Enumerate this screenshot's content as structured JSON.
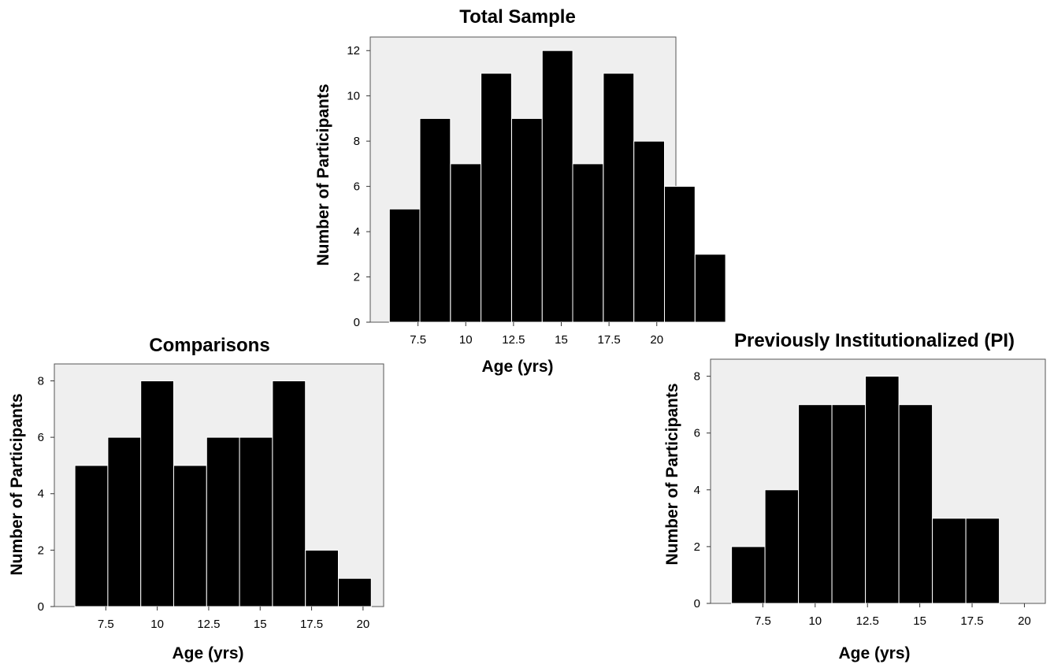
{
  "chart_data": [
    {
      "type": "bar",
      "title": "Total Sample",
      "xlabel": "Age (yrs)",
      "ylabel": "Number of Participants",
      "bin_start": 6.0,
      "bin_width": 1.6,
      "values": [
        5,
        9,
        7,
        11,
        9,
        12,
        7,
        11,
        8,
        6,
        3
      ],
      "xlim": [
        5.0,
        21.0
      ],
      "ylim": [
        0,
        12.6
      ],
      "xticks": [
        7.5,
        10,
        12.5,
        15,
        17.5,
        20
      ],
      "xtick_labels": [
        "7.5",
        "10",
        "12.5",
        "15",
        "17.5",
        "20"
      ],
      "yticks": [
        0,
        2,
        4,
        6,
        8,
        10,
        12
      ],
      "ytick_labels": [
        "0",
        "2",
        "4",
        "6",
        "8",
        "10",
        "12"
      ],
      "bar_color": "#000000",
      "bar_edge_color": "#ffffff",
      "plot_background": "#efefef",
      "grid": false
    },
    {
      "type": "bar",
      "title": "Comparisons",
      "xlabel": "Age (yrs)",
      "ylabel": "Number of Participants",
      "bin_start": 6.0,
      "bin_width": 1.6,
      "values": [
        5,
        6,
        8,
        5,
        6,
        6,
        8,
        2,
        1
      ],
      "xlim": [
        5.0,
        21.0
      ],
      "ylim": [
        0,
        8.6
      ],
      "xticks": [
        7.5,
        10,
        12.5,
        15,
        17.5,
        20
      ],
      "xtick_labels": [
        "7.5",
        "10",
        "12.5",
        "15",
        "17.5",
        "20"
      ],
      "yticks": [
        0,
        2,
        4,
        6,
        8
      ],
      "ytick_labels": [
        "0",
        "2",
        "4",
        "6",
        "8"
      ],
      "bar_color": "#000000",
      "bar_edge_color": "#ffffff",
      "plot_background": "#efefef",
      "grid": false
    },
    {
      "type": "bar",
      "title": "Previously Institutionalized (PI)",
      "xlabel": "Age (yrs)",
      "ylabel": "Number of Participants",
      "bin_start": 6.0,
      "bin_width": 1.6,
      "values": [
        2,
        4,
        7,
        7,
        8,
        7,
        3,
        3
      ],
      "xlim": [
        5.0,
        21.0
      ],
      "ylim": [
        0,
        8.6
      ],
      "xticks": [
        7.5,
        10,
        12.5,
        15,
        17.5,
        20
      ],
      "xtick_labels": [
        "7.5",
        "10",
        "12.5",
        "15",
        "17.5",
        "20"
      ],
      "yticks": [
        0,
        2,
        4,
        6,
        8
      ],
      "ytick_labels": [
        "0",
        "2",
        "4",
        "6",
        "8"
      ],
      "bar_color": "#000000",
      "bar_edge_color": "#ffffff",
      "plot_background": "#efefef",
      "grid": false
    }
  ]
}
